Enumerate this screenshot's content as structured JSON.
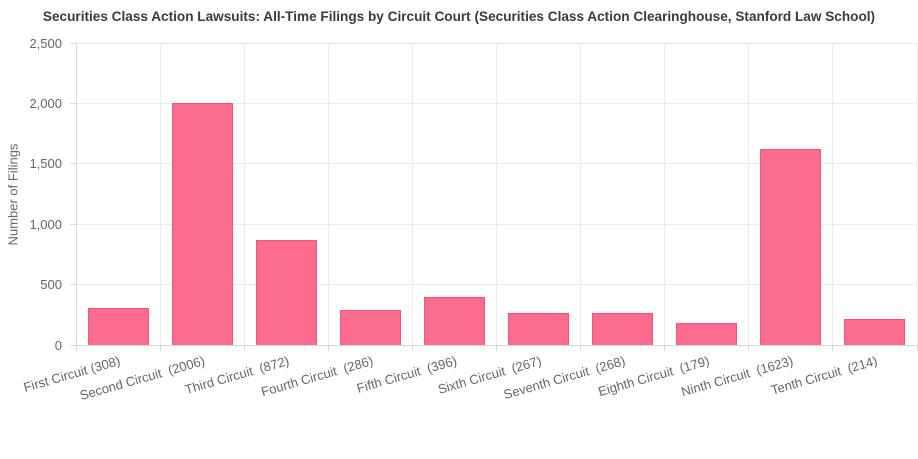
{
  "chart_title": "Securities Class Action Lawsuits: All-Time Filings by Circuit Court (Securities Class Action Clearinghouse, Stanford Law School)",
  "chart_data": {
    "type": "bar",
    "title": "Securities Class Action Lawsuits: All-Time Filings by Circuit Court (Securities Class Action Clearinghouse, Stanford Law School)",
    "categories": [
      "First Circuit (308)",
      "Second Circuit  (2006)",
      "Third Circuit  (872)",
      "Fourth Circuit  (286)",
      "Fifth Circuit  (396)",
      "Sixth Circuit  (267)",
      "Seventh Circuit  (268)",
      "Eighth Circuit  (179)",
      "Ninth Circuit  (1623)",
      "Tenth Circuit  (214)"
    ],
    "values": [
      308,
      2006,
      872,
      286,
      396,
      267,
      268,
      179,
      1623,
      214
    ],
    "xlabel": "",
    "ylabel": "Number of Filings",
    "ylim": [
      0,
      2500
    ],
    "yticks": [
      0,
      500,
      1000,
      1500,
      2000,
      2500
    ],
    "ytick_labels": [
      "0",
      "500",
      "1,000",
      "1,500",
      "2,000",
      "2,500"
    ],
    "bar_color": "#fb6d8e",
    "bar_border_color": "#f25578",
    "grid": true,
    "legend_position": "none",
    "x_label_rotation_deg": -16
  }
}
